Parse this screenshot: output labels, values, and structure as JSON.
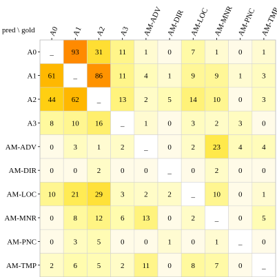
{
  "chart_data": {
    "type": "heatmap",
    "corner_label": "pred \\ gold",
    "rows": [
      "A0",
      "A1",
      "A2",
      "A3",
      "AM-ADV",
      "AM-DIR",
      "AM-LOC",
      "AM-MNR",
      "AM-PNC",
      "AM-TMP"
    ],
    "columns": [
      "A0",
      "A1",
      "A2",
      "A3",
      "AM-ADV",
      "AM-DIR",
      "AM-LOC",
      "AM-MNR",
      "AM-PNC",
      "AM-TMP"
    ],
    "diagonal_symbol": "_",
    "values": [
      [
        null,
        93,
        31,
        11,
        1,
        0,
        7,
        1,
        0,
        1
      ],
      [
        61,
        null,
        86,
        11,
        4,
        1,
        9,
        9,
        1,
        3
      ],
      [
        44,
        62,
        null,
        13,
        2,
        5,
        14,
        10,
        0,
        3
      ],
      [
        8,
        10,
        16,
        null,
        1,
        0,
        3,
        2,
        3,
        0
      ],
      [
        0,
        3,
        1,
        2,
        null,
        0,
        2,
        23,
        4,
        4
      ],
      [
        0,
        0,
        2,
        0,
        0,
        null,
        0,
        2,
        0,
        0
      ],
      [
        10,
        21,
        29,
        3,
        2,
        2,
        null,
        10,
        0,
        1
      ],
      [
        0,
        8,
        12,
        6,
        13,
        0,
        2,
        null,
        0,
        5
      ],
      [
        0,
        3,
        5,
        0,
        0,
        1,
        0,
        1,
        null,
        0
      ],
      [
        2,
        6,
        5,
        2,
        11,
        0,
        8,
        7,
        0,
        null
      ]
    ],
    "color_scale": [
      "#fffbe8",
      "#fffcb0",
      "#ffe94a",
      "#ffc700",
      "#ff8a00"
    ],
    "value_range": [
      0,
      93
    ],
    "diagonal_color": "#ffffff",
    "grid_color": "#d4d4d4"
  }
}
